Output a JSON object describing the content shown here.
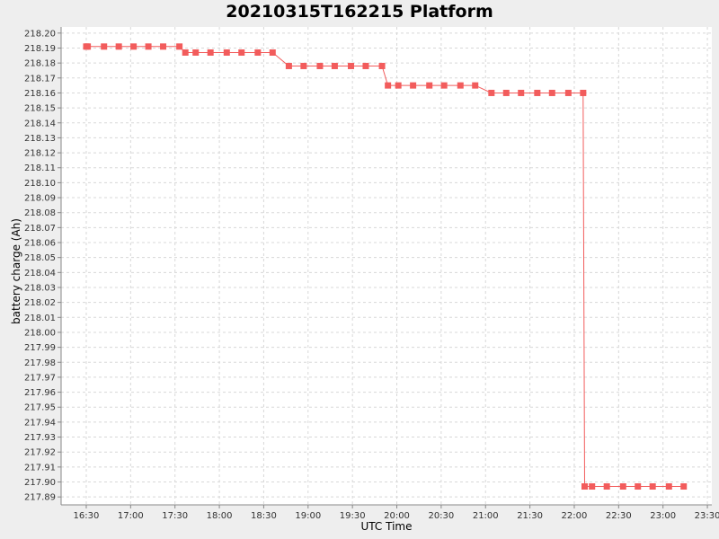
{
  "chart_data": {
    "type": "line",
    "title": "20210315T162215 Platform",
    "xlabel": "UTC Time",
    "ylabel": "battery charge (Ah)",
    "x_ticks": [
      "16:30",
      "17:00",
      "17:30",
      "18:00",
      "18:30",
      "19:00",
      "19:30",
      "20:00",
      "20:30",
      "21:00",
      "21:30",
      "22:00",
      "22:30",
      "23:00",
      "23:30"
    ],
    "y_ticks": [
      "217.89",
      "217.90",
      "217.91",
      "217.92",
      "217.93",
      "217.94",
      "217.95",
      "217.96",
      "217.97",
      "217.98",
      "217.99",
      "218.00",
      "218.01",
      "218.02",
      "218.03",
      "218.04",
      "218.05",
      "218.06",
      "218.07",
      "218.08",
      "218.09",
      "218.10",
      "218.11",
      "218.12",
      "218.13",
      "218.14",
      "218.15",
      "218.16",
      "218.17",
      "218.18",
      "218.19",
      "218.20"
    ],
    "xlim": [
      "16:13",
      "23:33"
    ],
    "ylim": [
      217.8847,
      218.2041
    ],
    "grid": true,
    "colors": {
      "series": "#f25c5c",
      "plot_bg": "#ffffff",
      "grid": "#d8d8d8",
      "page_bg": "#eeeeee"
    },
    "series": [
      {
        "x": [
          "16:30",
          "16:31",
          "16:42",
          "16:52",
          "17:02",
          "17:12",
          "17:22",
          "17:33",
          "17:37",
          "17:44",
          "17:54",
          "18:05",
          "18:15",
          "18:26",
          "18:36",
          "18:47",
          "18:57",
          "19:08",
          "19:18",
          "19:29",
          "19:39",
          "19:50",
          "19:54",
          "20:01",
          "20:11",
          "20:22",
          "20:32",
          "20:43",
          "20:53",
          "21:04",
          "21:14",
          "21:24",
          "21:35",
          "21:45",
          "21:56",
          "22:06",
          "22:07",
          "22:12",
          "22:22",
          "22:33",
          "22:43",
          "22:53",
          "23:04",
          "23:14"
        ],
        "y": [
          218.191,
          218.191,
          218.191,
          218.191,
          218.191,
          218.191,
          218.191,
          218.191,
          218.187,
          218.187,
          218.187,
          218.187,
          218.187,
          218.187,
          218.187,
          218.178,
          218.178,
          218.178,
          218.178,
          218.178,
          218.178,
          218.178,
          218.165,
          218.165,
          218.165,
          218.165,
          218.165,
          218.165,
          218.165,
          218.16,
          218.16,
          218.16,
          218.16,
          218.16,
          218.16,
          218.16,
          217.897,
          217.897,
          217.897,
          217.897,
          217.897,
          217.897,
          217.897,
          217.897
        ]
      }
    ]
  }
}
